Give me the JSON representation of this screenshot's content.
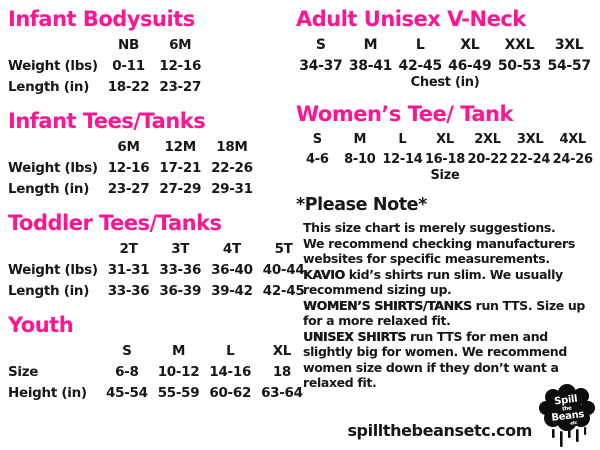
{
  "meta": {
    "background": "#ffffff",
    "accent_pink": "#ff1493",
    "ink_color": "#171717"
  },
  "left_sections": [
    {
      "title": "Infant Bodysuits",
      "columns": [
        "NB",
        "6M"
      ],
      "rows": [
        {
          "label": "Weight (lbs)",
          "values": [
            "0-11",
            "12-16"
          ]
        },
        {
          "label": "Length (in)",
          "values": [
            "18-22",
            "23-27"
          ]
        }
      ]
    },
    {
      "title": "Infant Tees/Tanks",
      "columns": [
        "6M",
        "12M",
        "18M"
      ],
      "rows": [
        {
          "label": "Weight (lbs)",
          "values": [
            "12-16",
            "17-21",
            "22-26"
          ]
        },
        {
          "label": "Length (in)",
          "values": [
            "23-27",
            "27-29",
            "29-31"
          ]
        }
      ]
    },
    {
      "title": "Toddler Tees/Tanks",
      "columns": [
        "2T",
        "3T",
        "4T",
        "5T"
      ],
      "rows": [
        {
          "label": "Weight (lbs)",
          "values": [
            "31-31",
            "33-36",
            "36-40",
            "40-44"
          ]
        },
        {
          "label": "Length (in)",
          "values": [
            "33-36",
            "36-39",
            "39-42",
            "42-45"
          ]
        }
      ]
    },
    {
      "title": "Youth",
      "columns": [
        "S",
        "M",
        "L",
        "XL"
      ],
      "rows": [
        {
          "label": "Size",
          "values": [
            "6-8",
            "10-12",
            "14-16",
            "18"
          ]
        },
        {
          "label": "Height (in)",
          "values": [
            "45-54",
            "55-59",
            "60-62",
            "63-64"
          ]
        }
      ]
    }
  ],
  "right_sections": [
    {
      "title": "Adult Unisex V-Neck",
      "sizes": [
        "S",
        "M",
        "L",
        "XL",
        "XXL",
        "3XL"
      ],
      "values": [
        "34-37",
        "38-41",
        "42-45",
        "46-49",
        "50-53",
        "54-57"
      ],
      "axis_label": "Chest (in)"
    },
    {
      "title": "Women’s Tee/ Tank",
      "sizes": [
        "S",
        "M",
        "L",
        "XL",
        "2XL",
        "3XL",
        "4XL"
      ],
      "values": [
        "4-6",
        "8-10",
        "12-14",
        "16-18",
        "20-22",
        "22-24",
        "24-26"
      ],
      "axis_label": "Size"
    }
  ],
  "note": {
    "title": "*Please Note*",
    "paragraphs": [
      {
        "lead": "",
        "text": "This size chart is merely suggestions."
      },
      {
        "lead": "",
        "text": "We recommend checking manufacturers websites for specific measurements."
      },
      {
        "lead": "KAVIO",
        "text": " kid’s shirts run slim. We usually recommend sizing up."
      },
      {
        "lead": "WOMEN’S SHIRTS/TANKS",
        "text": " run TTS. Size up for a more relaxed fit."
      },
      {
        "lead": "UNISEX SHIRTS",
        "text": " run TTS for men and slightly big for women. We recommend women size down if they don’t want a relaxed fit."
      }
    ]
  },
  "footer": {
    "website": "spillthebeansetc.com",
    "logo_lines": [
      "Spill",
      "the",
      "Beans",
      "etc"
    ]
  }
}
